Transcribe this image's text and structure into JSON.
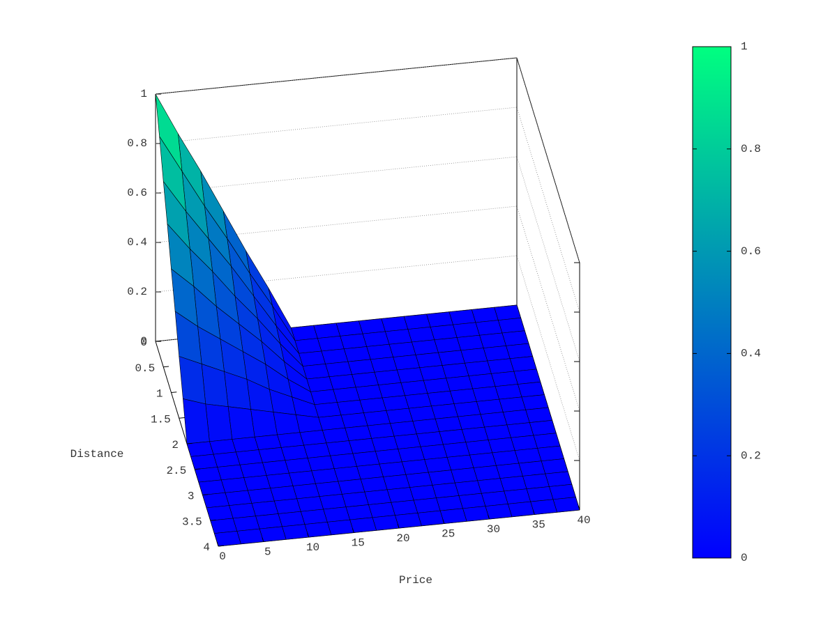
{
  "chart_data": {
    "type": "surface",
    "xlabel": "Price",
    "ylabel": "Distance",
    "x": [
      0,
      2.5,
      5,
      7.5,
      10,
      12.5,
      15,
      17.5,
      20,
      22.5,
      25,
      27.5,
      30,
      32.5,
      35,
      37.5,
      40
    ],
    "y": [
      0,
      0.25,
      0.5,
      0.75,
      1,
      1.25,
      1.5,
      1.75,
      2,
      2.25,
      2.5,
      2.75,
      3,
      3.25,
      3.5,
      3.75,
      4
    ],
    "z": [
      [
        1,
        0.83,
        0.67,
        0.5,
        0.33,
        0.17,
        0,
        0,
        0,
        0,
        0,
        0,
        0,
        0,
        0,
        0,
        0
      ],
      [
        0.88,
        0.73,
        0.58,
        0.44,
        0.29,
        0.15,
        0,
        0,
        0,
        0,
        0,
        0,
        0,
        0,
        0,
        0,
        0
      ],
      [
        0.75,
        0.62,
        0.5,
        0.38,
        0.25,
        0.12,
        0,
        0,
        0,
        0,
        0,
        0,
        0,
        0,
        0,
        0,
        0
      ],
      [
        0.63,
        0.52,
        0.42,
        0.31,
        0.21,
        0.1,
        0,
        0,
        0,
        0,
        0,
        0,
        0,
        0,
        0,
        0,
        0
      ],
      [
        0.5,
        0.42,
        0.33,
        0.25,
        0.17,
        0.08,
        0,
        0,
        0,
        0,
        0,
        0,
        0,
        0,
        0,
        0,
        0
      ],
      [
        0.38,
        0.31,
        0.25,
        0.19,
        0.13,
        0.06,
        0,
        0,
        0,
        0,
        0,
        0,
        0,
        0,
        0,
        0,
        0
      ],
      [
        0.25,
        0.21,
        0.17,
        0.13,
        0.08,
        0.04,
        0,
        0,
        0,
        0,
        0,
        0,
        0,
        0,
        0,
        0,
        0
      ],
      [
        0.13,
        0.1,
        0.08,
        0.06,
        0.04,
        0.02,
        0,
        0,
        0,
        0,
        0,
        0,
        0,
        0,
        0,
        0,
        0
      ],
      [
        0,
        0,
        0,
        0,
        0,
        0,
        0,
        0,
        0,
        0,
        0,
        0,
        0,
        0,
        0,
        0,
        0
      ],
      [
        0,
        0,
        0,
        0,
        0,
        0,
        0,
        0,
        0,
        0,
        0,
        0,
        0,
        0,
        0,
        0,
        0
      ],
      [
        0,
        0,
        0,
        0,
        0,
        0,
        0,
        0,
        0,
        0,
        0,
        0,
        0,
        0,
        0,
        0,
        0
      ],
      [
        0,
        0,
        0,
        0,
        0,
        0,
        0,
        0,
        0,
        0,
        0,
        0,
        0,
        0,
        0,
        0,
        0
      ],
      [
        0,
        0,
        0,
        0,
        0,
        0,
        0,
        0,
        0,
        0,
        0,
        0,
        0,
        0,
        0,
        0,
        0
      ],
      [
        0,
        0,
        0,
        0,
        0,
        0,
        0,
        0,
        0,
        0,
        0,
        0,
        0,
        0,
        0,
        0,
        0
      ],
      [
        0,
        0,
        0,
        0,
        0,
        0,
        0,
        0,
        0,
        0,
        0,
        0,
        0,
        0,
        0,
        0,
        0
      ],
      [
        0,
        0,
        0,
        0,
        0,
        0,
        0,
        0,
        0,
        0,
        0,
        0,
        0,
        0,
        0,
        0,
        0
      ],
      [
        0,
        0,
        0,
        0,
        0,
        0,
        0,
        0,
        0,
        0,
        0,
        0,
        0,
        0,
        0,
        0,
        0
      ]
    ],
    "xlim": [
      0,
      40
    ],
    "xticks": [
      0,
      5,
      10,
      15,
      20,
      25,
      30,
      35,
      40
    ],
    "ylim": [
      0,
      4
    ],
    "yticks": [
      0,
      0.5,
      1,
      1.5,
      2,
      2.5,
      3,
      3.5,
      4
    ],
    "zlim": [
      0,
      1
    ],
    "zticks": [
      0,
      0.2,
      0.4,
      0.6,
      0.8,
      1
    ],
    "cblim": [
      0,
      1
    ],
    "cbticks": [
      0,
      0.2,
      0.4,
      0.6,
      0.8,
      1
    ],
    "colormap": [
      "#0000ff",
      "#00ff80"
    ],
    "grid": true
  }
}
